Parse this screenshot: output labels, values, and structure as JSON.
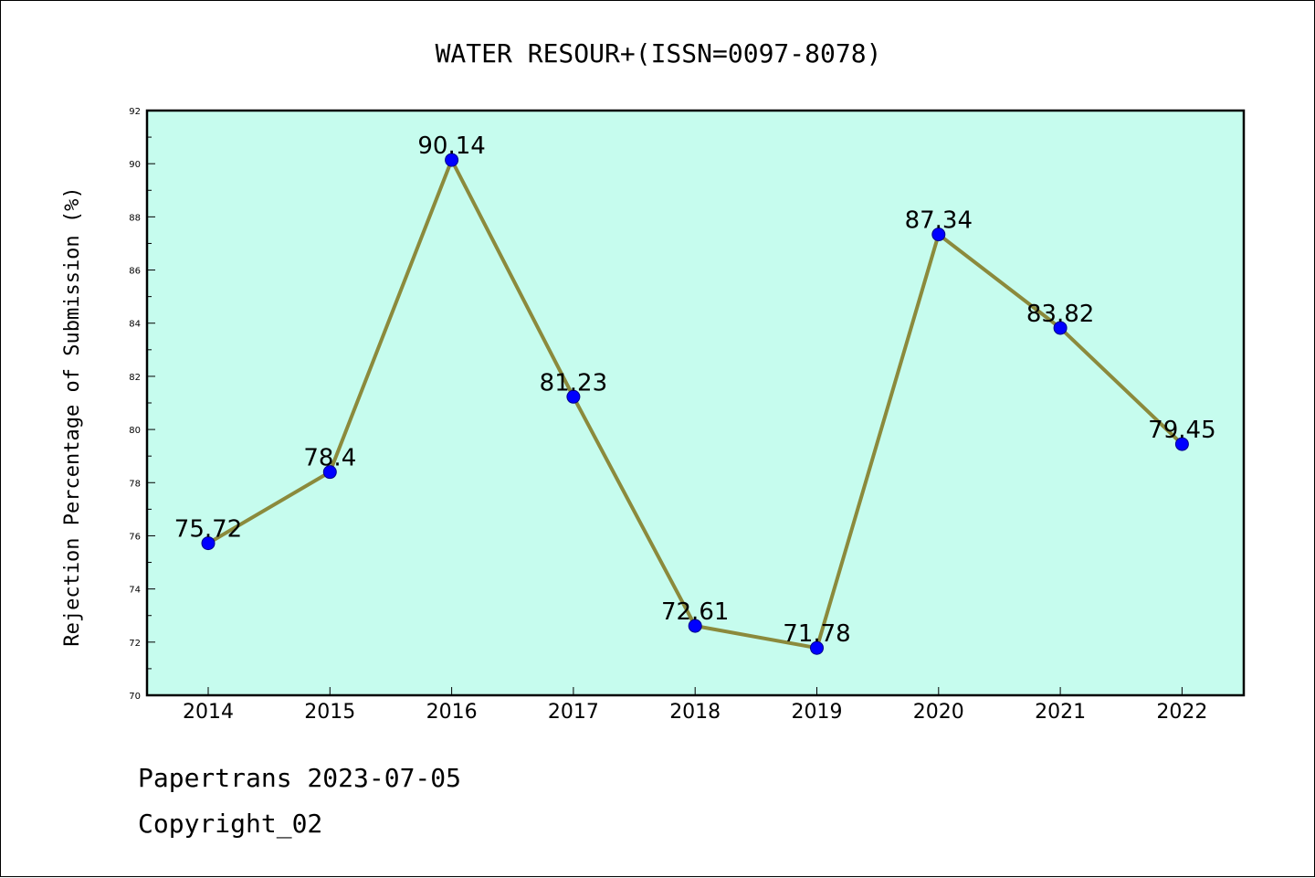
{
  "chart_data": {
    "type": "line",
    "title": "WATER RESOUR+(ISSN=0097-8078)",
    "xlabel": "",
    "ylabel": "Rejection Percentage of Submission (%)",
    "categories": [
      "2014",
      "2015",
      "2016",
      "2017",
      "2018",
      "2019",
      "2020",
      "2021",
      "2022"
    ],
    "series": [
      {
        "values": [
          75.72,
          78.4,
          90.14,
          81.23,
          72.61,
          71.78,
          87.34,
          83.82,
          79.45
        ],
        "labels": [
          "75.72",
          "78.4",
          "90.14",
          "81.23",
          "72.61",
          "71.78",
          "87.34",
          "83.82",
          "79.45"
        ]
      }
    ],
    "ylim": [
      70,
      92
    ],
    "yticks": [
      "70",
      "72",
      "74",
      "76",
      "78",
      "80",
      "82",
      "84",
      "86",
      "88",
      "90",
      "92"
    ],
    "grid": false,
    "colors": {
      "plot_background": "#c6fcee",
      "line": "#8b8a3c",
      "marker": "#0000ff"
    }
  },
  "footer": {
    "line1": "Papertrans 2023-07-05",
    "line2": "Copyright_02"
  }
}
